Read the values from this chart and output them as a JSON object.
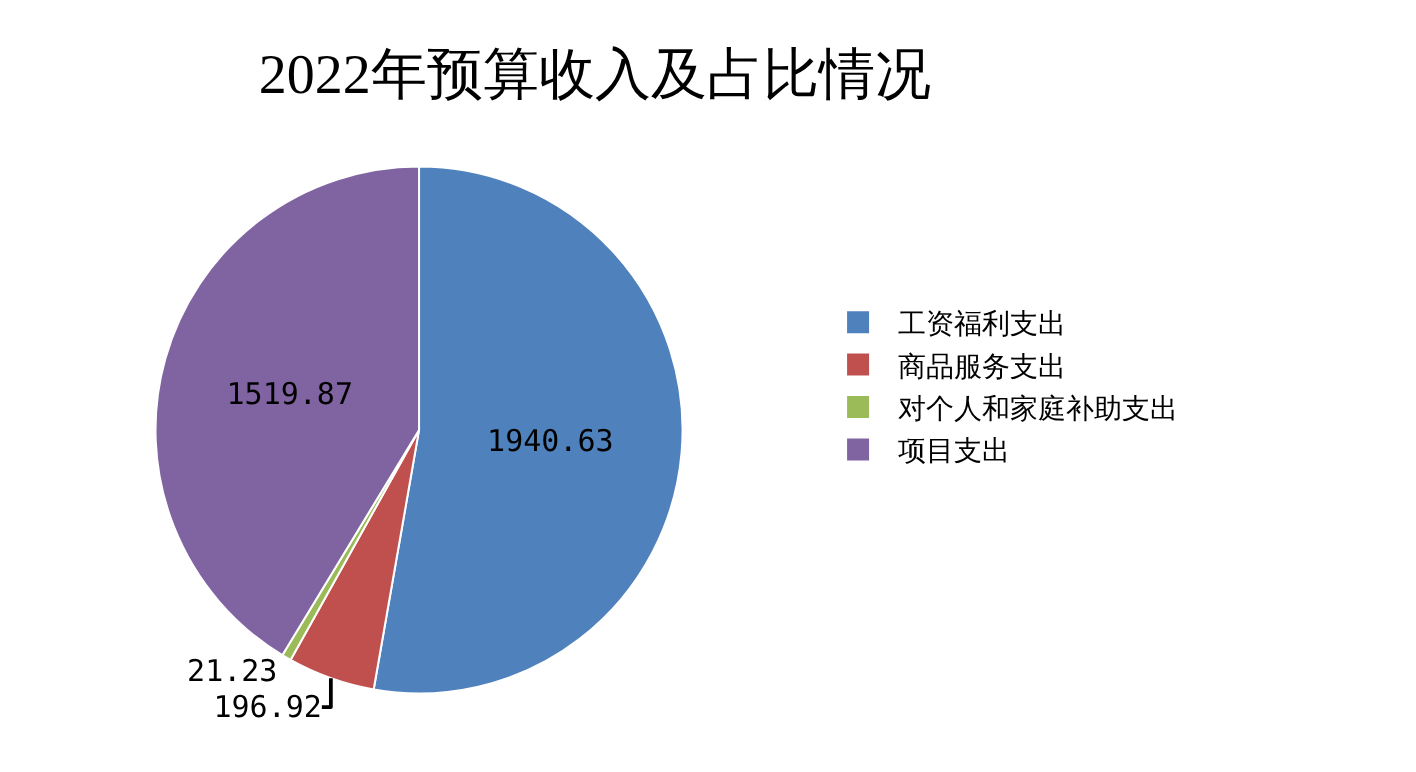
{
  "chart_data": {
    "type": "pie",
    "title": "2022年预算收入及占比情况",
    "categories": [
      "工资福利支出",
      "商品服务支出",
      "对个人和家庭补助支出",
      "项目支出"
    ],
    "values": [
      1940.63,
      196.92,
      21.23,
      1519.87
    ],
    "colors": [
      "#4f81bd",
      "#c0504d",
      "#9bbb59",
      "#8064a2"
    ],
    "data_labels": true,
    "legend": "right"
  }
}
